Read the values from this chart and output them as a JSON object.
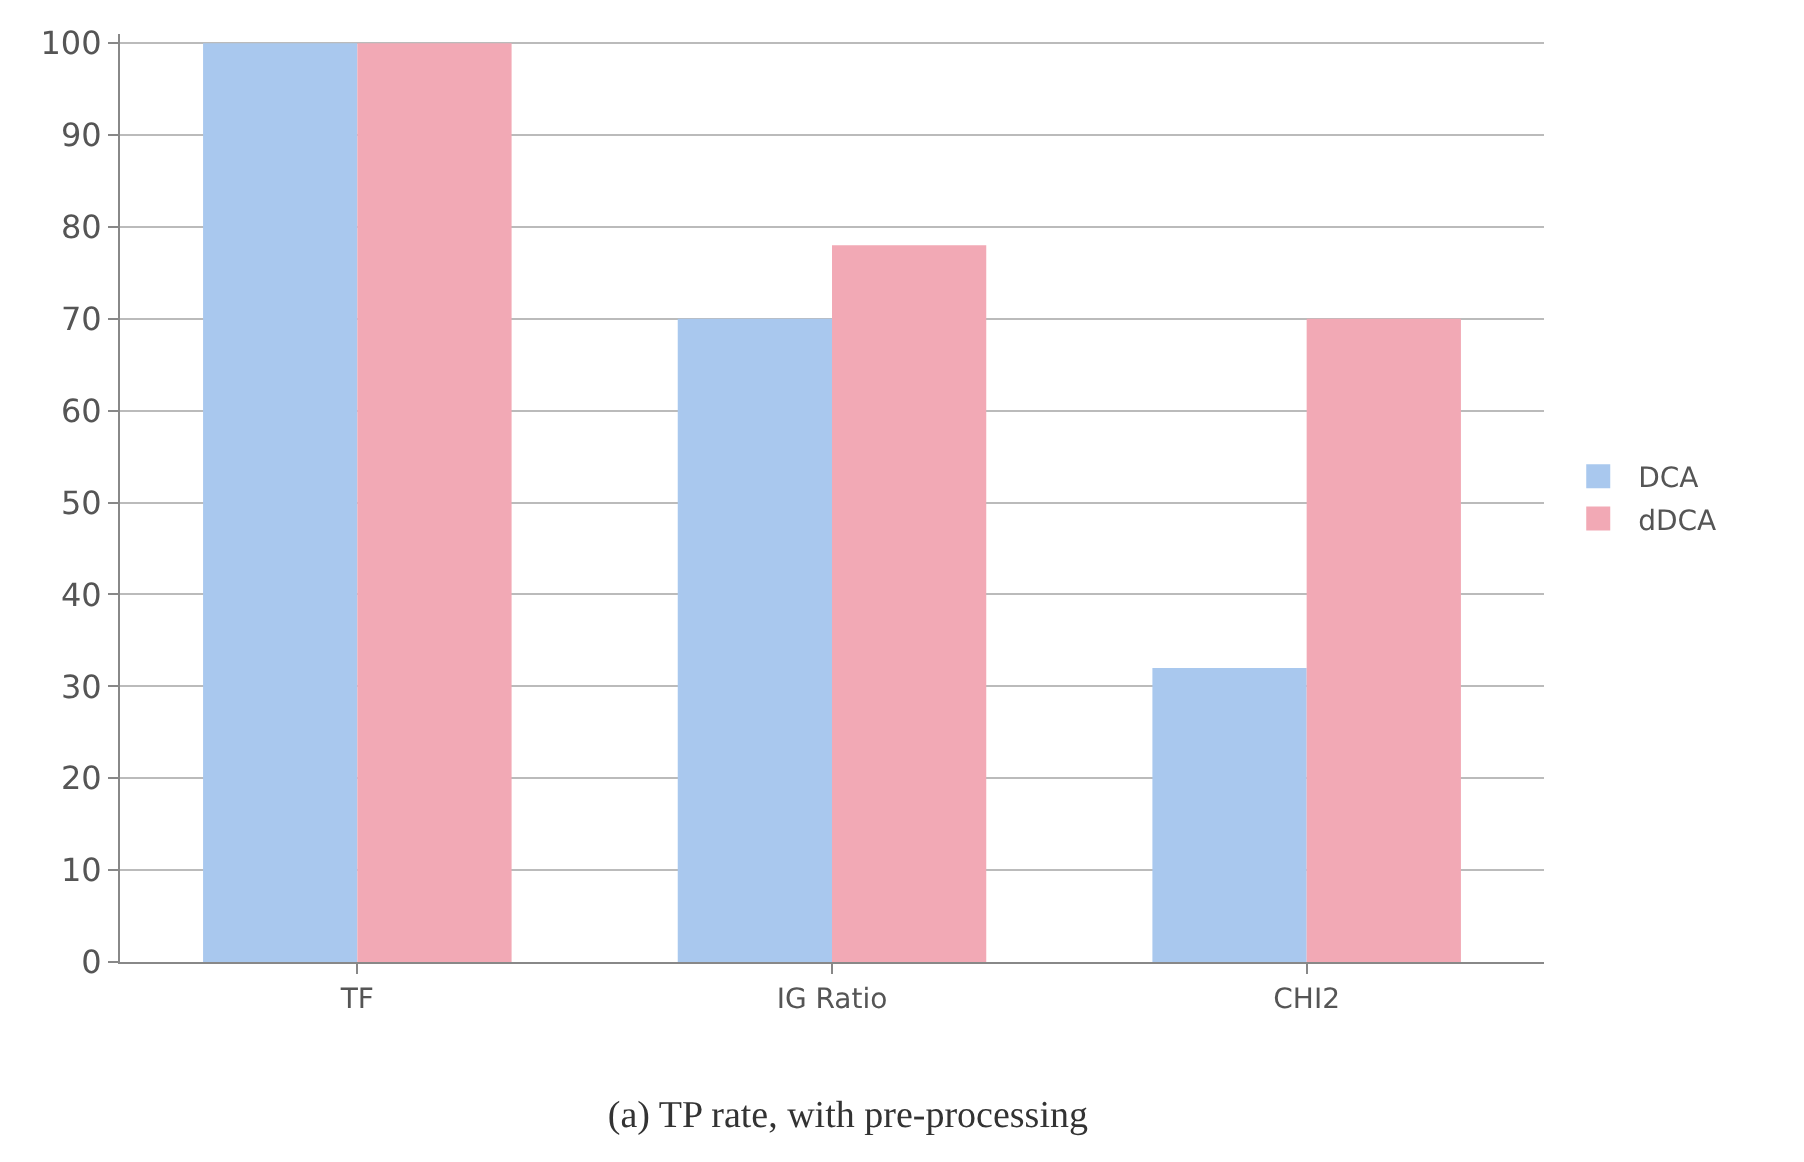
{
  "chart_data": {
    "type": "bar",
    "title": "(a) TP rate, with pre-processing",
    "categories": [
      "TF",
      "IG Ratio",
      "CHI2"
    ],
    "series": [
      {
        "name": "DCA",
        "color": "#a9c8ee",
        "values": [
          100,
          70,
          32
        ]
      },
      {
        "name": "dDCA",
        "color": "#f2a9b5",
        "values": [
          100,
          78,
          70
        ]
      }
    ],
    "ylim": [
      0,
      101
    ],
    "yticks": [
      0,
      10,
      20,
      30,
      40,
      50,
      60,
      70,
      80,
      90,
      100
    ],
    "grid": "y",
    "legend": "right"
  }
}
